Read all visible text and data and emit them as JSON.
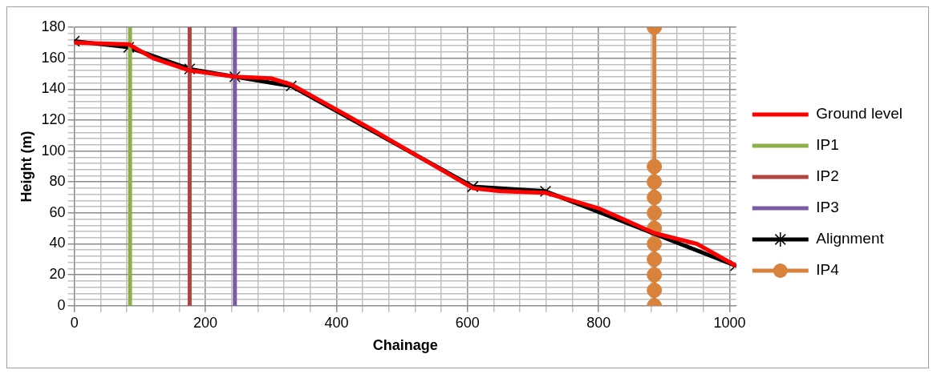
{
  "chart_data": {
    "type": "line",
    "xlabel": "Chainage",
    "ylabel": "Height (m)",
    "xlim": [
      0,
      1010
    ],
    "ylim": [
      0,
      180
    ],
    "xticks": [
      0,
      {
        "value": 40,
        "label": null
      },
      {
        "value": 80,
        "label": null
      },
      {
        "value": 120,
        "label": null
      },
      {
        "value": 160,
        "label": null
      },
      200,
      {
        "value": 240,
        "label": null
      },
      {
        "value": 280,
        "label": null
      },
      {
        "value": 320,
        "label": null
      },
      {
        "value": 360,
        "label": null
      },
      400,
      {
        "value": 440,
        "label": null
      },
      {
        "value": 480,
        "label": null
      },
      {
        "value": 520,
        "label": null
      },
      {
        "value": 560,
        "label": null
      },
      600,
      {
        "value": 640,
        "label": null
      },
      {
        "value": 680,
        "label": null
      },
      {
        "value": 720,
        "label": null
      },
      {
        "value": 760,
        "label": null
      },
      800,
      {
        "value": 840,
        "label": null
      },
      {
        "value": 880,
        "label": null
      },
      {
        "value": 920,
        "label": null
      },
      {
        "value": 960,
        "label": null
      },
      1000
    ],
    "yticks": [
      0,
      {
        "value": 4,
        "label": null
      },
      {
        "value": 8,
        "label": null
      },
      {
        "value": 12,
        "label": null
      },
      {
        "value": 16,
        "label": null
      },
      20,
      {
        "value": 24,
        "label": null
      },
      {
        "value": 28,
        "label": null
      },
      {
        "value": 32,
        "label": null
      },
      {
        "value": 36,
        "label": null
      },
      40,
      {
        "value": 44,
        "label": null
      },
      {
        "value": 48,
        "label": null
      },
      {
        "value": 52,
        "label": null
      },
      {
        "value": 56,
        "label": null
      },
      60,
      {
        "value": 64,
        "label": null
      },
      {
        "value": 68,
        "label": null
      },
      {
        "value": 72,
        "label": null
      },
      {
        "value": 76,
        "label": null
      },
      80,
      {
        "value": 84,
        "label": null
      },
      {
        "value": 88,
        "label": null
      },
      {
        "value": 92,
        "label": null
      },
      {
        "value": 96,
        "label": null
      },
      100,
      {
        "value": 104,
        "label": null
      },
      {
        "value": 108,
        "label": null
      },
      {
        "value": 112,
        "label": null
      },
      {
        "value": 116,
        "label": null
      },
      120,
      {
        "value": 124,
        "label": null
      },
      {
        "value": 128,
        "label": null
      },
      {
        "value": 132,
        "label": null
      },
      {
        "value": 136,
        "label": null
      },
      140,
      {
        "value": 144,
        "label": null
      },
      {
        "value": 148,
        "label": null
      },
      {
        "value": 152,
        "label": null
      },
      {
        "value": 156,
        "label": null
      },
      160,
      {
        "value": 164,
        "label": null
      },
      {
        "value": 168,
        "label": null
      },
      {
        "value": 172,
        "label": null
      },
      {
        "value": 176,
        "label": null
      },
      180
    ],
    "grid": true,
    "legend": "right",
    "line_style": "solid",
    "series": [
      {
        "name": "Ground level",
        "color": "#ff0000",
        "marker": "none",
        "x": [
          0,
          83,
          120,
          176,
          245,
          300,
          331,
          450,
          608,
          650,
          719,
          800,
          885,
          950,
          1009
        ],
        "values": [
          170,
          169,
          160,
          152,
          148,
          147,
          143,
          115,
          76,
          74,
          73,
          63,
          47,
          40,
          26
        ]
      },
      {
        "name": "IP1",
        "color": "#8db04a",
        "marker": "none",
        "x": [
          85,
          85
        ],
        "values": [
          0,
          180
        ]
      },
      {
        "name": "IP2",
        "color": "#b04540",
        "marker": "none",
        "x": [
          176,
          176
        ],
        "values": [
          0,
          180
        ]
      },
      {
        "name": "IP3",
        "color": "#7b5aa6",
        "marker": "none",
        "x": [
          245,
          245
        ],
        "values": [
          0,
          180
        ]
      },
      {
        "name": "Alignment",
        "color": "#000000",
        "marker": "cross",
        "x": [
          0,
          83,
          176,
          245,
          331,
          608,
          719,
          1009
        ],
        "values": [
          171,
          167,
          153,
          148,
          142,
          77,
          74,
          26
        ]
      },
      {
        "name": "IP4",
        "color": "#d9823b",
        "marker": "circle",
        "x": [
          885,
          885,
          885,
          885,
          885,
          885,
          885,
          885,
          885,
          885,
          885
        ],
        "values": [
          0,
          10,
          20,
          30,
          40,
          50,
          60,
          70,
          80,
          90,
          180
        ]
      }
    ]
  }
}
